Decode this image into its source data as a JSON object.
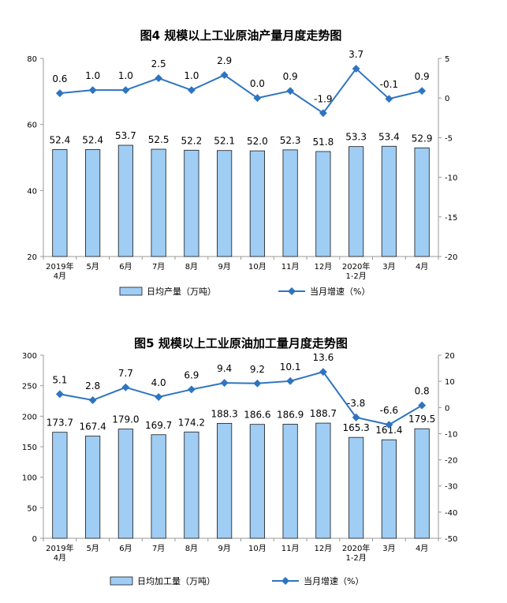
{
  "chart_data": [
    {
      "type": "bar",
      "title": "图4  规模以上工业原油产量月度走势图",
      "categories": [
        "2019年\n4月",
        "5月",
        "6月",
        "7月",
        "8月",
        "9月",
        "10月",
        "11月",
        "12月",
        "2020年\n1-2月",
        "3月",
        "4月"
      ],
      "series": [
        {
          "name": "日均产量（万吨）",
          "type": "bar",
          "axis": "left",
          "values": [
            52.4,
            52.4,
            53.7,
            52.5,
            52.2,
            52.1,
            52.0,
            52.3,
            51.8,
            53.3,
            53.4,
            52.9
          ]
        },
        {
          "name": "当月增速（%）",
          "type": "line",
          "axis": "right",
          "values": [
            0.6,
            1.0,
            1.0,
            2.5,
            1.0,
            2.9,
            0.0,
            0.9,
            -1.9,
            3.7,
            -0.1,
            0.9
          ]
        }
      ],
      "ylim": [
        20,
        80
      ],
      "yticks": [
        20,
        40,
        60,
        80
      ],
      "y2lim": [
        -20,
        5
      ],
      "y2ticks": [
        -20,
        -15,
        -10,
        -5,
        0,
        5
      ],
      "legend_position": "bottom"
    },
    {
      "type": "bar",
      "title": "图5  规模以上工业原油加工量月度走势图",
      "categories": [
        "2019年\n4月",
        "5月",
        "6月",
        "7月",
        "8月",
        "9月",
        "10月",
        "11月",
        "12月",
        "2020年\n1-2月",
        "3月",
        "4月"
      ],
      "series": [
        {
          "name": "日均加工量（万吨）",
          "type": "bar",
          "axis": "left",
          "values": [
            173.7,
            167.4,
            179.0,
            169.7,
            174.2,
            188.3,
            186.6,
            186.9,
            188.7,
            165.3,
            161.4,
            179.5
          ]
        },
        {
          "name": "当月增速（%）",
          "type": "line",
          "axis": "right",
          "values": [
            5.1,
            2.8,
            7.7,
            4.0,
            6.9,
            9.4,
            9.2,
            10.1,
            13.6,
            -3.8,
            -6.6,
            0.8
          ]
        }
      ],
      "ylim": [
        0,
        300
      ],
      "yticks": [
        0,
        50,
        100,
        150,
        200,
        250,
        300
      ],
      "y2lim": [
        -50,
        20
      ],
      "y2ticks": [
        -50,
        -40,
        -30,
        -20,
        -10,
        0,
        10,
        20
      ],
      "legend_position": "bottom"
    }
  ],
  "colors": {
    "bar_fill": "#9fcdf4",
    "bar_stroke": "#1a1a1a",
    "line": "#2e74c0",
    "axis": "#999999"
  }
}
